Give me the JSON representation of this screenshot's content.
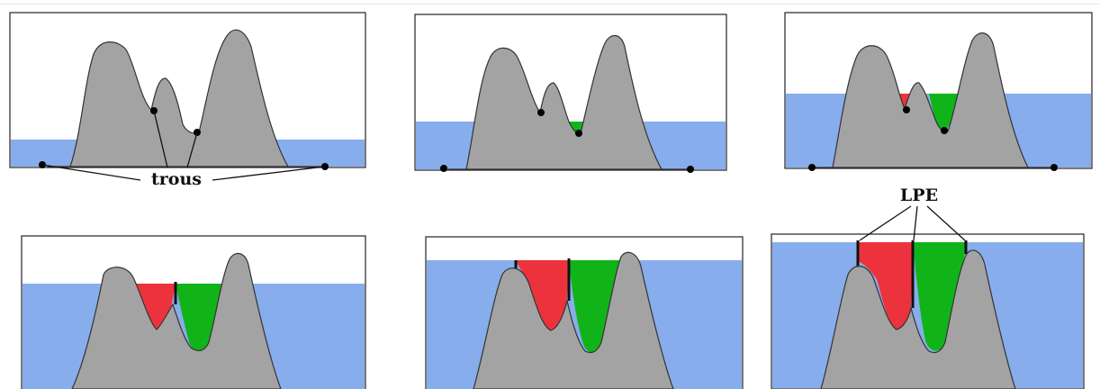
{
  "colors": {
    "water": "#87adec",
    "mountain": "#a3a3a3",
    "basin_left": "#ec323c",
    "basin_right": "#10b418",
    "frame": "#222222"
  },
  "labels": {
    "trous": "trous",
    "lpe": "LPE"
  },
  "panels": [
    {
      "name": "stage-1",
      "level": 0.22,
      "left_fill": 0,
      "right_fill": 0,
      "dam": false
    },
    {
      "name": "stage-2",
      "level": 0.36,
      "left_fill": 0,
      "right_fill": 0.3,
      "dam": false
    },
    {
      "name": "stage-3",
      "level": 0.53,
      "left_fill": 0.45,
      "right_fill": 0.6,
      "dam": false
    },
    {
      "name": "stage-4",
      "level": 0.72,
      "left_fill": 1,
      "right_fill": 1,
      "dam": true
    },
    {
      "name": "stage-5",
      "level": 0.85,
      "left_fill": 1,
      "right_fill": 1,
      "dam": true
    },
    {
      "name": "stage-6",
      "level": 0.95,
      "left_fill": 1,
      "right_fill": 1,
      "dam": true
    }
  ]
}
